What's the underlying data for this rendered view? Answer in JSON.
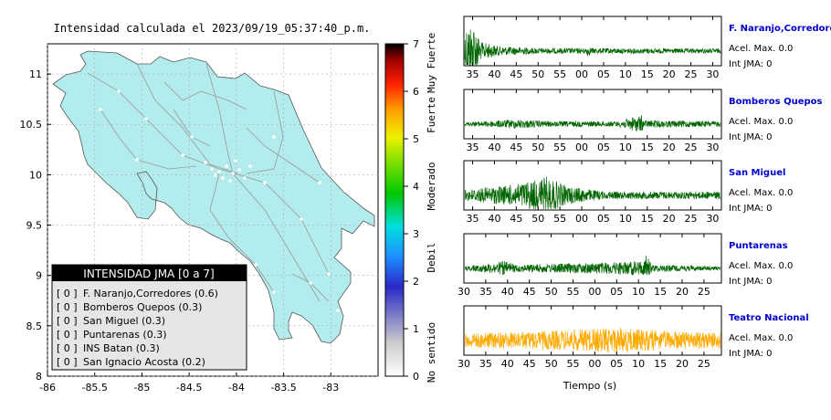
{
  "map": {
    "title": "Intensidad calculada el 2023/09/19_05:37:40_p.m.",
    "lon_ticks": [
      "-86",
      "-85.5",
      "-85",
      "-84.5",
      "-84",
      "-83.5",
      "-83"
    ],
    "lat_ticks": [
      "8",
      "8.5",
      "9",
      "9.5",
      "10",
      "10.5",
      "11"
    ],
    "lon_range": [
      -86,
      -82.5
    ],
    "lat_range": [
      8,
      11.3
    ],
    "land_color": "#b3ecec"
  },
  "legend": {
    "title": "INTENSIDAD JMA [0 a 7]",
    "items": [
      {
        "level": "[ 0 ]",
        "label": "F. Naranjo,Corredores (0.6)"
      },
      {
        "level": "[ 0 ]",
        "label": "Bomberos Quepos (0.3)"
      },
      {
        "level": "[ 0 ]",
        "label": "San Miguel (0.3)"
      },
      {
        "level": "[ 0 ]",
        "label": "Puntarenas (0.3)"
      },
      {
        "level": "[ 0 ]",
        "label": "INS Batan (0.3)"
      },
      {
        "level": "[ 0 ]",
        "label": "San Ignacio Acosta (0.2)"
      }
    ]
  },
  "colorbar": {
    "ticks": [
      "0",
      "1",
      "2",
      "3",
      "4",
      "5",
      "6",
      "7"
    ],
    "range": [
      0,
      7
    ],
    "category_labels": [
      "No sentido",
      "Debil",
      "Moderado",
      "Fuerte",
      "Muy Fuerte"
    ],
    "colors": [
      "#ffffff",
      "#b0b0b0",
      "#3c3cc8",
      "#1e90ff",
      "#00e8e8",
      "#00c800",
      "#e8e800",
      "#ff9000",
      "#ff0000",
      "#000000"
    ]
  },
  "chart_data": {
    "type": "line",
    "xlabel": "Tiempo (s)",
    "acel_label": "Acel. Max. 0.0",
    "int_label": "Int JMA: 0",
    "panels": [
      {
        "station": "F. Naranjo,Corredores",
        "color": "#006400",
        "station_color": "#0000cc",
        "x_ticks": [
          "35",
          "40",
          "45",
          "50",
          "55",
          "00",
          "05",
          "10",
          "15",
          "20",
          "25",
          "30"
        ],
        "x_start": 33,
        "x_span": 59,
        "acel_label": "Acel. Max. 0.0",
        "int_label": "Int JMA: 0"
      },
      {
        "station": "Bomberos Quepos",
        "color": "#006400",
        "station_color": "#0000cc",
        "x_ticks": [
          "35",
          "40",
          "45",
          "50",
          "55",
          "00",
          "05",
          "10",
          "15",
          "20",
          "25",
          "30"
        ],
        "x_start": 33,
        "x_span": 59,
        "acel_label": "Acel. Max. 0.0",
        "int_label": "Int JMA: 0"
      },
      {
        "station": "San Miguel",
        "color": "#006400",
        "station_color": "#0000cc",
        "x_ticks": [
          "35",
          "40",
          "45",
          "50",
          "55",
          "00",
          "05",
          "10",
          "15",
          "20",
          "25",
          "30"
        ],
        "x_start": 33,
        "x_span": 59,
        "acel_label": "Acel. Max. 0.0",
        "int_label": "Int JMA: 0"
      },
      {
        "station": "Puntarenas",
        "color": "#006400",
        "station_color": "#0000cc",
        "x_ticks": [
          "30",
          "35",
          "40",
          "45",
          "50",
          "55",
          "00",
          "05",
          "10",
          "15",
          "20",
          "25"
        ],
        "x_start": 30,
        "x_span": 59,
        "acel_label": "Acel. Max. 0.0",
        "int_label": "Int JMA: 0"
      },
      {
        "station": "Teatro Nacional",
        "color": "#ffaa00",
        "station_color": "#0000cc",
        "x_ticks": [
          "30",
          "35",
          "40",
          "45",
          "50",
          "55",
          "00",
          "05",
          "10",
          "15",
          "20",
          "25"
        ],
        "x_start": 30,
        "x_span": 59,
        "acel_label": "Acel. Max. 0.0",
        "int_label": "Int JMA: 0"
      }
    ]
  }
}
